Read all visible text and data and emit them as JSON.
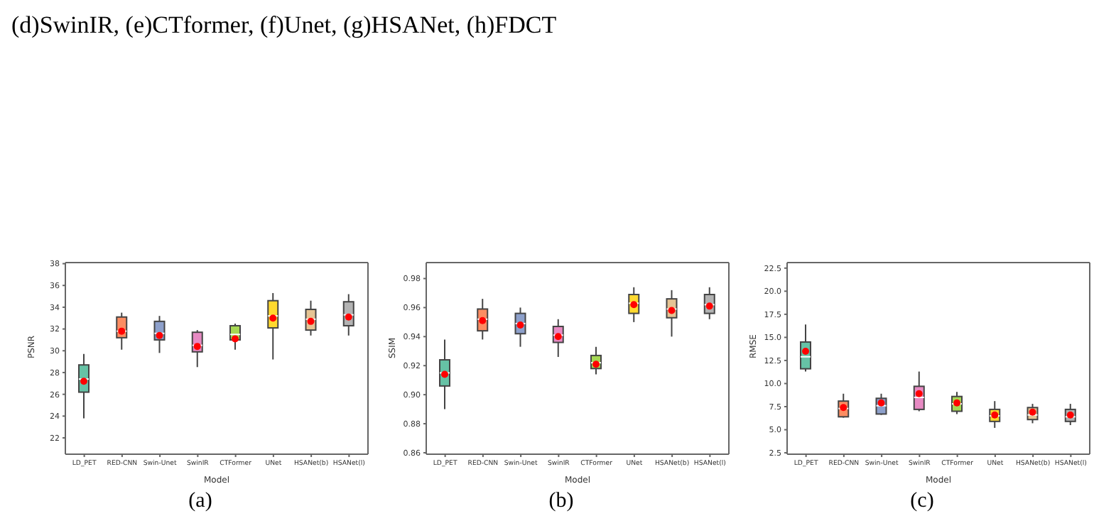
{
  "chart_data": [
    {
      "type": "box",
      "title": "(d)SwinIR, (e)CTformer, (f)Unet, (g)HSANet, (h)FDCT",
      "annotations": [
        "(a)"
      ],
      "xlabel": "Model",
      "ylabel": "PSNR",
      "categories": [
        "LD_PET",
        "RED-CNN",
        "Swin-Unet",
        "SwinIR",
        "CTFormer",
        "UNet",
        "HSANet(b)",
        "HSANet(l)"
      ],
      "colors": [
        "#66c2a5",
        "#fc8d62",
        "#8da0cb",
        "#e78ac3",
        "#a6d854",
        "#ffd92f",
        "#e5c494",
        "#b3b3b3"
      ],
      "boxes": [
        {
          "low": 23.8,
          "q1": 26.2,
          "median": 27.4,
          "q3": 28.7,
          "high": 29.7,
          "mean": 27.2
        },
        {
          "low": 30.1,
          "q1": 31.2,
          "median": 31.8,
          "q3": 33.1,
          "high": 33.5,
          "mean": 31.8
        },
        {
          "low": 29.8,
          "q1": 31.0,
          "median": 31.6,
          "q3": 32.7,
          "high": 33.2,
          "mean": 31.4
        },
        {
          "low": 28.5,
          "q1": 29.9,
          "median": 30.5,
          "q3": 31.7,
          "high": 31.9,
          "mean": 30.4
        },
        {
          "low": 30.1,
          "q1": 31.0,
          "median": 31.5,
          "q3": 32.3,
          "high": 32.5,
          "mean": 31.1
        },
        {
          "low": 29.2,
          "q1": 32.1,
          "median": 33.2,
          "q3": 34.6,
          "high": 35.3,
          "mean": 33.0
        },
        {
          "low": 31.4,
          "q1": 31.9,
          "median": 32.9,
          "q3": 33.8,
          "high": 34.6,
          "mean": 32.7
        },
        {
          "low": 31.4,
          "q1": 32.3,
          "median": 33.3,
          "q3": 34.5,
          "high": 35.2,
          "mean": 33.1
        }
      ],
      "ylim": [
        20.5,
        38.1
      ],
      "yticks": [
        22,
        24,
        26,
        28,
        30,
        32,
        34,
        36,
        38
      ]
    },
    {
      "type": "box",
      "annotations": [
        "(b)"
      ],
      "xlabel": "Model",
      "ylabel": "SSIM",
      "categories": [
        "LD_PET",
        "RED-CNN",
        "Swin-Unet",
        "SwinIR",
        "CTFormer",
        "UNet",
        "HSANet(b)",
        "HSANet(l)"
      ],
      "colors": [
        "#66c2a5",
        "#fc8d62",
        "#8da0cb",
        "#e78ac3",
        "#a6d854",
        "#ffd92f",
        "#e5c494",
        "#b3b3b3"
      ],
      "boxes": [
        {
          "low": 0.89,
          "q1": 0.906,
          "median": 0.915,
          "q3": 0.924,
          "high": 0.938,
          "mean": 0.914
        },
        {
          "low": 0.938,
          "q1": 0.944,
          "median": 0.952,
          "q3": 0.959,
          "high": 0.966,
          "mean": 0.951
        },
        {
          "low": 0.933,
          "q1": 0.942,
          "median": 0.949,
          "q3": 0.956,
          "high": 0.96,
          "mean": 0.948
        },
        {
          "low": 0.926,
          "q1": 0.936,
          "median": 0.941,
          "q3": 0.947,
          "high": 0.952,
          "mean": 0.94
        },
        {
          "low": 0.914,
          "q1": 0.918,
          "median": 0.922,
          "q3": 0.927,
          "high": 0.933,
          "mean": 0.921
        },
        {
          "low": 0.95,
          "q1": 0.956,
          "median": 0.963,
          "q3": 0.969,
          "high": 0.974,
          "mean": 0.962
        },
        {
          "low": 0.94,
          "q1": 0.953,
          "median": 0.959,
          "q3": 0.966,
          "high": 0.972,
          "mean": 0.958
        },
        {
          "low": 0.952,
          "q1": 0.956,
          "median": 0.962,
          "q3": 0.969,
          "high": 0.974,
          "mean": 0.961
        }
      ],
      "ylim": [
        0.859,
        0.991
      ],
      "yticks": [
        {
          "value": 0.86,
          "label": "0.86"
        },
        {
          "value": 0.88,
          "label": "0.88"
        },
        {
          "value": 0.9,
          "label": "0.90"
        },
        {
          "value": 0.92,
          "label": "0.92"
        },
        {
          "value": 0.94,
          "label": "0.94"
        },
        {
          "value": 0.96,
          "label": "0.96"
        },
        {
          "value": 0.98,
          "label": "0.98"
        }
      ]
    },
    {
      "type": "box",
      "annotations": [
        "(c)"
      ],
      "xlabel": "Model",
      "ylabel": "RMSE",
      "categories": [
        "LD_PET",
        "RED-CNN",
        "Swin-Unet",
        "SwinIR",
        "CTFormer",
        "UNet",
        "HSANet(b)",
        "HSANet(l)"
      ],
      "colors": [
        "#66c2a5",
        "#fc8d62",
        "#8da0cb",
        "#e78ac3",
        "#a6d854",
        "#ffd92f",
        "#e5c494",
        "#b3b3b3"
      ],
      "boxes": [
        {
          "low": 11.3,
          "q1": 11.6,
          "median": 12.9,
          "q3": 14.5,
          "high": 16.4,
          "mean": 13.5
        },
        {
          "low": 6.3,
          "q1": 6.4,
          "median": 7.3,
          "q3": 8.1,
          "high": 8.9,
          "mean": 7.4
        },
        {
          "low": 6.6,
          "q1": 6.7,
          "median": 7.6,
          "q3": 8.4,
          "high": 8.9,
          "mean": 7.9
        },
        {
          "low": 7.0,
          "q1": 7.2,
          "median": 8.5,
          "q3": 9.7,
          "high": 11.3,
          "mean": 8.9
        },
        {
          "low": 6.7,
          "q1": 7.0,
          "median": 7.8,
          "q3": 8.6,
          "high": 9.1,
          "mean": 7.9
        },
        {
          "low": 5.2,
          "q1": 5.9,
          "median": 6.5,
          "q3": 7.2,
          "high": 8.1,
          "mean": 6.6
        },
        {
          "low": 5.7,
          "q1": 6.1,
          "median": 6.6,
          "q3": 7.4,
          "high": 7.8,
          "mean": 6.9
        },
        {
          "low": 5.5,
          "q1": 5.9,
          "median": 6.4,
          "q3": 7.2,
          "high": 7.8,
          "mean": 6.6
        }
      ],
      "ylim": [
        2.35,
        23.1
      ],
      "yticks": [
        {
          "value": 2.5,
          "label": "2.5"
        },
        {
          "value": 5,
          "label": "5.0"
        },
        {
          "value": 7.5,
          "label": "7.5"
        },
        {
          "value": 10,
          "label": "10.0"
        },
        {
          "value": 12.5,
          "label": "12.5"
        },
        {
          "value": 15,
          "label": "15.0"
        },
        {
          "value": 17.5,
          "label": "17.5"
        },
        {
          "value": 20,
          "label": "20.0"
        },
        {
          "value": 22.5,
          "label": "22.5"
        }
      ]
    }
  ]
}
